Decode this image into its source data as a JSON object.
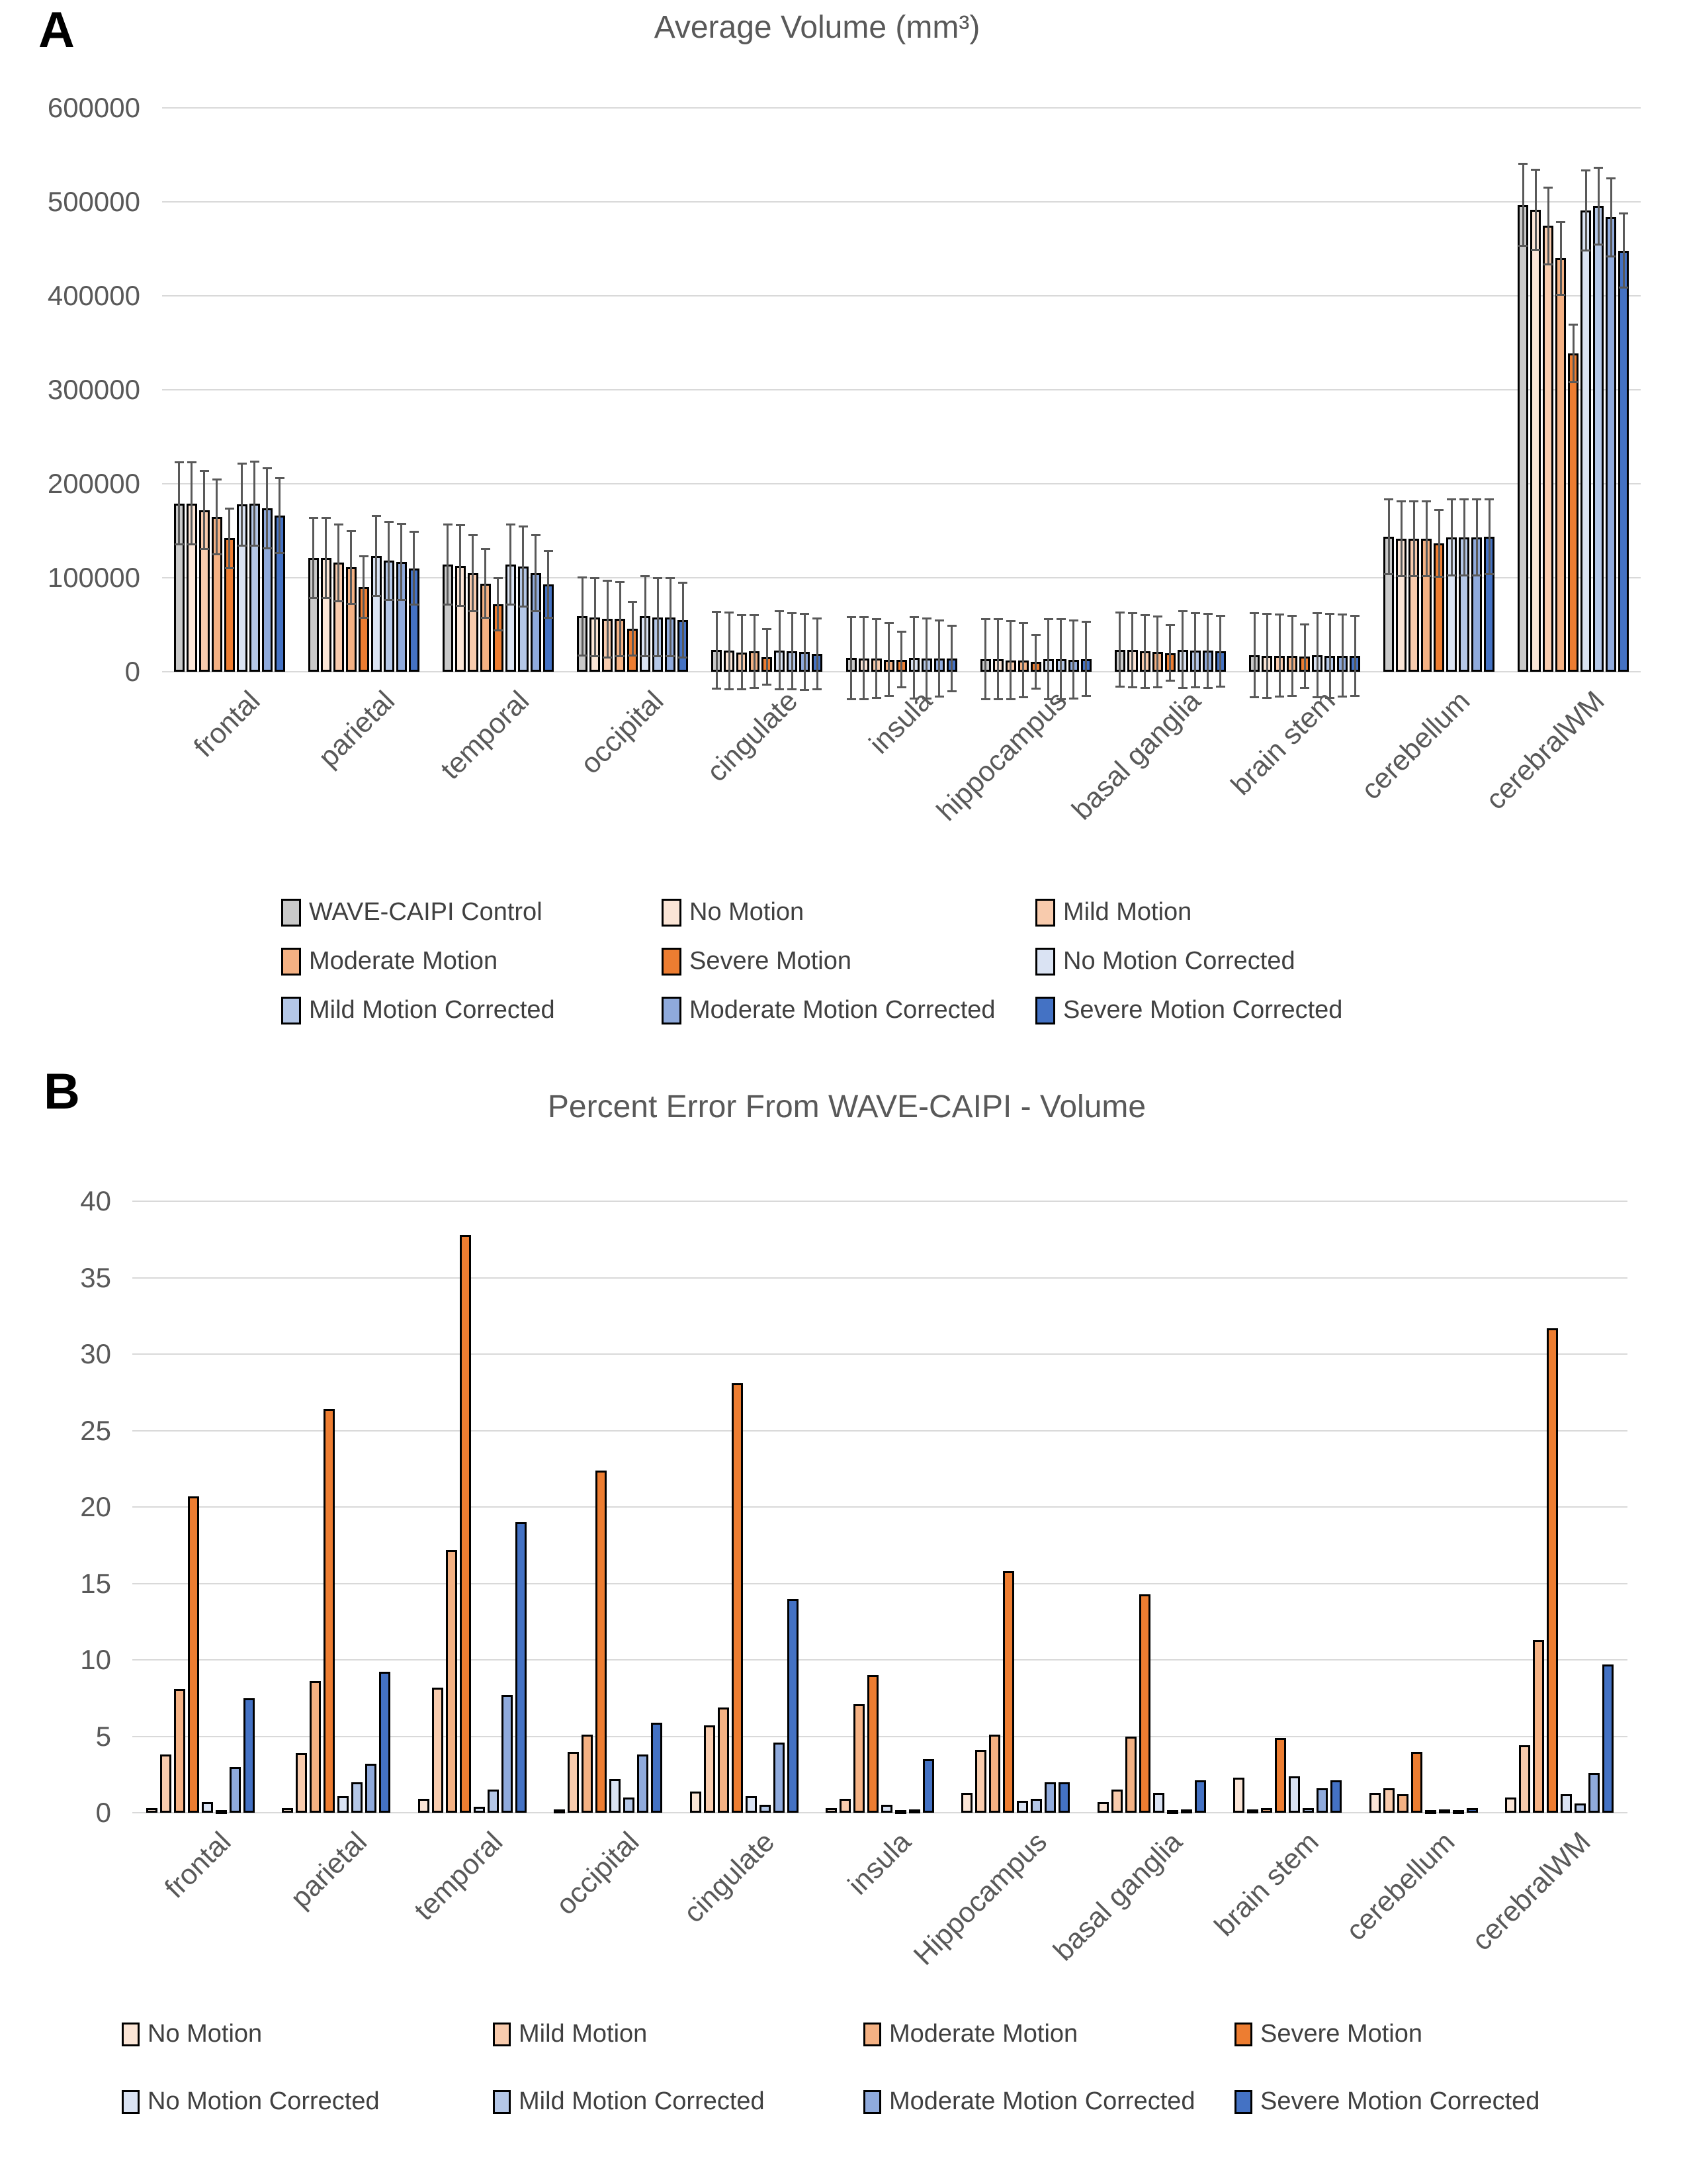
{
  "panels": {
    "a": {
      "letter": "A",
      "title": "Average Volume (mm³)"
    },
    "b": {
      "letter": "B",
      "title": "Percent Error From WAVE-CAIPI - Volume"
    }
  },
  "chart_data": [
    {
      "id": "average-volume",
      "type": "bar",
      "title": "Average Volume (mm³)",
      "xlabel": "",
      "ylabel": "",
      "ylim": [
        0,
        600000
      ],
      "ytick_step": 100000,
      "grid": true,
      "error_bars": true,
      "legend_position": "bottom",
      "categories": [
        "frontal",
        "parietal",
        "temporal",
        "occipital",
        "cingulate",
        "insula",
        "hippocampus",
        "basal ganglia",
        "brain stem",
        "cerebellum",
        "cerebralWM"
      ],
      "series": [
        {
          "name": "WAVE-CAIPI Control",
          "color": "#c9c9c9",
          "values": [
            179000,
            121000,
            114000,
            59000,
            23000,
            14600,
            13600,
            23500,
            17500,
            143700,
            496700
          ],
          "errors": [
            44000,
            43000,
            43000,
            42000,
            41000,
            44000,
            43000,
            40000,
            45000,
            40000,
            44000
          ]
        },
        {
          "name": "No Motion",
          "color": "#fbe5d6",
          "values": [
            179000,
            121000,
            113000,
            58000,
            22300,
            14100,
            13600,
            23000,
            17100,
            141600,
            491800
          ],
          "errors": [
            44000,
            43000,
            43000,
            42000,
            41000,
            44000,
            43000,
            40000,
            45000,
            40000,
            43000
          ]
        },
        {
          "name": "Mild Motion",
          "color": "#f8cbad",
          "values": [
            172000,
            116000,
            105000,
            56000,
            20700,
            14000,
            12200,
            21600,
            17100,
            141600,
            474300
          ],
          "errors": [
            42000,
            41000,
            41000,
            41000,
            40000,
            42000,
            42000,
            39000,
            44000,
            40000,
            41000
          ]
        },
        {
          "name": "Moderate Motion",
          "color": "#f4b183",
          "values": [
            165000,
            111000,
            94000,
            56000,
            21600,
            13000,
            12200,
            21100,
            16900,
            141600,
            440000
          ],
          "errors": [
            40000,
            39000,
            37000,
            40000,
            39000,
            39000,
            40000,
            38000,
            43000,
            40000,
            39000
          ]
        },
        {
          "name": "Severe Motion",
          "color": "#ed7d31",
          "values": [
            142000,
            90000,
            72000,
            46000,
            15700,
            13000,
            10600,
            20000,
            16400,
            136700,
            338800
          ],
          "errors": [
            32000,
            33000,
            28000,
            29000,
            30000,
            30000,
            29000,
            30000,
            34000,
            36000,
            31000
          ]
        },
        {
          "name": "No Motion Corrected",
          "color": "#dae3f3",
          "values": [
            178000,
            123000,
            114000,
            59000,
            22800,
            14800,
            13600,
            23500,
            17500,
            142900,
            490600
          ],
          "errors": [
            44000,
            43000,
            43000,
            43000,
            42000,
            44000,
            43000,
            41000,
            45000,
            41000,
            43000
          ]
        },
        {
          "name": "Mild Motion Corrected",
          "color": "#b4c7e7",
          "values": [
            179000,
            118000,
            112000,
            58000,
            21800,
            14300,
            13400,
            22800,
            17100,
            142900,
            495500
          ],
          "errors": [
            45000,
            42000,
            43000,
            42000,
            41000,
            43000,
            43000,
            40000,
            45000,
            41000,
            41000
          ]
        },
        {
          "name": "Moderate Motion Corrected",
          "color": "#8faadc",
          "values": [
            174000,
            117000,
            105000,
            58000,
            21100,
            14100,
            12900,
            22300,
            17100,
            142900,
            483700
          ],
          "errors": [
            43000,
            41000,
            41000,
            42000,
            41000,
            41000,
            42000,
            40000,
            44000,
            41000,
            42000
          ]
        },
        {
          "name": "Severe Motion Corrected",
          "color": "#4472c4",
          "values": [
            166000,
            110000,
            93000,
            55000,
            19200,
            14100,
            13600,
            21600,
            16900,
            143700,
            448200
          ],
          "errors": [
            40000,
            39000,
            36000,
            40000,
            38000,
            35000,
            40000,
            38000,
            43000,
            40000,
            40000
          ]
        }
      ]
    },
    {
      "id": "percent-error-volume",
      "type": "bar",
      "title": "Percent Error From WAVE-CAIPI - Volume",
      "xlabel": "",
      "ylabel": "",
      "ylim": [
        0,
        40
      ],
      "ytick_step": 5,
      "grid": true,
      "error_bars": false,
      "legend_position": "bottom",
      "categories": [
        "frontal",
        "parietal",
        "temporal",
        "occipital",
        "cingulate",
        "insula",
        "Hippocampus",
        "basal ganglia",
        "brain stem",
        "cerebellum",
        "cerebralWM"
      ],
      "series": [
        {
          "name": "No Motion",
          "color": "#fbe5d6",
          "values": [
            0.3,
            0.3,
            0.9,
            0.2,
            1.4,
            0.3,
            1.3,
            0.7,
            2.3,
            1.3,
            1.0
          ]
        },
        {
          "name": "Mild Motion",
          "color": "#f8cbad",
          "values": [
            3.8,
            3.9,
            8.2,
            4.0,
            5.7,
            0.9,
            4.1,
            1.5,
            0.2,
            1.6,
            4.4
          ]
        },
        {
          "name": "Moderate Motion",
          "color": "#f4b183",
          "values": [
            8.1,
            8.6,
            17.2,
            5.1,
            6.9,
            7.1,
            5.1,
            5.0,
            0.3,
            1.2,
            11.3
          ]
        },
        {
          "name": "Severe Motion",
          "color": "#ed7d31",
          "values": [
            20.7,
            26.4,
            37.8,
            22.4,
            28.1,
            9.0,
            15.8,
            14.3,
            4.9,
            4.0,
            31.7
          ]
        },
        {
          "name": "No Motion Corrected",
          "color": "#dae3f3",
          "values": [
            0.7,
            1.1,
            0.4,
            2.2,
            1.1,
            0.5,
            0.8,
            1.3,
            2.4,
            0.1,
            1.2
          ]
        },
        {
          "name": "Mild Motion Corrected",
          "color": "#b4c7e7",
          "values": [
            0.1,
            2.0,
            1.5,
            1.0,
            0.5,
            0.1,
            0.9,
            0.1,
            0.3,
            0.2,
            0.6
          ]
        },
        {
          "name": "Moderate Motion Corrected",
          "color": "#8faadc",
          "values": [
            3.0,
            3.2,
            7.7,
            3.8,
            4.6,
            0.2,
            2.0,
            0.2,
            1.6,
            0.1,
            2.6
          ]
        },
        {
          "name": "Severe Motion Corrected",
          "color": "#4472c4",
          "values": [
            7.5,
            9.2,
            19.0,
            5.9,
            14.0,
            3.5,
            2.0,
            2.1,
            2.1,
            0.3,
            9.7
          ]
        }
      ]
    }
  ]
}
